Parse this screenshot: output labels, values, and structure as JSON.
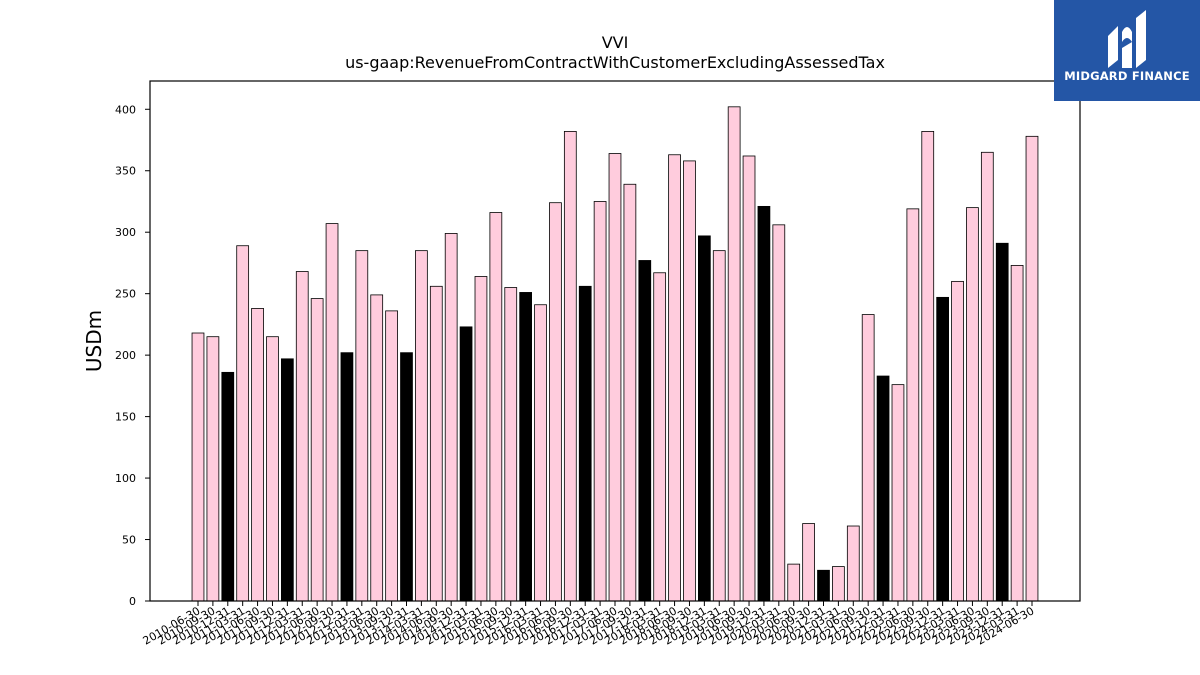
{
  "brand": {
    "name": "MIDGARD FINANCE",
    "accent": "#2456a6"
  },
  "chart_data": {
    "type": "bar",
    "title": "VVI",
    "subtitle": "us-gaap:RevenueFromContractWithCustomerExcludingAssessedTax",
    "xlabel": "",
    "ylabel": "USDm",
    "ylim": [
      0,
      423
    ],
    "yticks": [
      0,
      50,
      100,
      150,
      200,
      250,
      300,
      350,
      400
    ],
    "colors": {
      "quarter": "#ffccdd",
      "annual": "#000000",
      "edge": "#000000"
    },
    "categories": [
      "2010-06-30",
      "2010-09-30",
      "2010-12-31",
      "2011-03-31",
      "2011-06-30",
      "2011-09-30",
      "2011-12-31",
      "2012-03-31",
      "2012-06-30",
      "2012-09-30",
      "2012-12-31",
      "2013-03-31",
      "2013-06-30",
      "2013-09-30",
      "2013-12-31",
      "2014-03-31",
      "2014-06-30",
      "2014-09-30",
      "2014-12-31",
      "2015-03-31",
      "2015-06-30",
      "2015-09-30",
      "2015-12-31",
      "2016-03-31",
      "2016-06-30",
      "2016-09-30",
      "2016-12-31",
      "2017-03-31",
      "2017-06-30",
      "2017-09-30",
      "2017-12-31",
      "2018-03-31",
      "2018-06-30",
      "2018-09-30",
      "2018-12-31",
      "2019-03-31",
      "2019-06-30",
      "2019-09-30",
      "2019-12-31",
      "2020-03-31",
      "2020-06-30",
      "2020-09-30",
      "2020-12-31",
      "2021-03-31",
      "2021-06-30",
      "2021-09-30",
      "2021-12-31",
      "2022-03-31",
      "2022-06-30",
      "2022-09-30",
      "2022-12-31",
      "2023-03-31",
      "2023-06-30",
      "2023-09-30",
      "2023-12-31",
      "2024-03-31",
      "2024-06-30"
    ],
    "values": [
      218,
      215,
      186,
      289,
      238,
      215,
      197,
      268,
      246,
      307,
      202,
      285,
      249,
      236,
      202,
      285,
      256,
      299,
      223,
      264,
      316,
      255,
      251,
      241,
      324,
      382,
      256,
      325,
      364,
      339,
      277,
      267,
      363,
      358,
      297,
      285,
      402,
      362,
      321,
      306,
      30,
      63,
      25,
      28,
      61,
      233,
      183,
      176,
      319,
      382,
      247,
      260,
      320,
      365,
      291,
      273,
      378
    ],
    "annual": [
      false,
      false,
      true,
      false,
      false,
      false,
      true,
      false,
      false,
      false,
      true,
      false,
      false,
      false,
      true,
      false,
      false,
      false,
      true,
      false,
      false,
      false,
      true,
      false,
      false,
      false,
      true,
      false,
      false,
      false,
      true,
      false,
      false,
      false,
      true,
      false,
      false,
      false,
      true,
      false,
      false,
      false,
      true,
      false,
      false,
      false,
      true,
      false,
      false,
      false,
      true,
      false,
      false,
      false,
      true,
      false,
      false
    ],
    "legend": "none",
    "grid": false
  }
}
